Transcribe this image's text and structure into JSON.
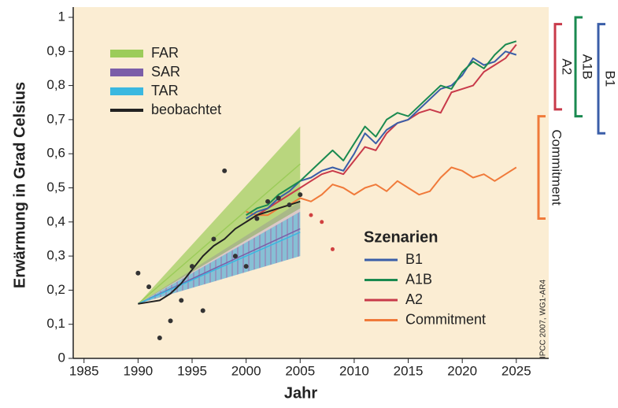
{
  "chart_data": {
    "type": "line",
    "x_label": "Jahr",
    "y_label": "Erwärmung in Grad Celsius",
    "xlim": [
      1984,
      2028
    ],
    "ylim": [
      0,
      1.03
    ],
    "xticks": [
      1985,
      1990,
      1995,
      2000,
      2005,
      2010,
      2015,
      2020,
      2025
    ],
    "yticks": [
      0,
      {
        "value": 0.1,
        "label": "0,1"
      },
      {
        "value": 0.2,
        "label": "0,2"
      },
      {
        "value": 0.3,
        "label": "0,3"
      },
      {
        "value": 0.4,
        "label": "0,4"
      },
      {
        "value": 0.5,
        "label": "0,5"
      },
      {
        "value": 0.6,
        "label": "0,6"
      },
      {
        "value": 0.7,
        "label": "0,7"
      },
      {
        "value": 0.8,
        "label": "0,8"
      },
      {
        "value": 0.9,
        "label": "0,9"
      },
      1
    ],
    "projections": [
      {
        "name": "FAR",
        "color": "#9ccc5a",
        "x": [
          1990,
          2005
        ],
        "lower": [
          0.16,
          0.44
        ],
        "upper": [
          0.16,
          0.68
        ],
        "values": [
          0.16,
          0.57
        ]
      },
      {
        "name": "SAR",
        "color": "#7b5ea8",
        "x": [
          1990,
          2005
        ],
        "lower": [
          0.16,
          0.3
        ],
        "upper": [
          0.16,
          0.46
        ],
        "values": [
          0.16,
          0.38
        ]
      },
      {
        "name": "TAR",
        "color": "#3ab8e0",
        "x": [
          1990,
          2005
        ],
        "lower": [
          0.16,
          0.3
        ],
        "upper": [
          0.16,
          0.43
        ],
        "values": [
          0.16,
          0.37
        ]
      }
    ],
    "observed": {
      "name": "beobachtet",
      "color": "#222222",
      "x": [
        1990,
        1991,
        1992,
        1993,
        1994,
        1995,
        1996,
        1997,
        1998,
        1999,
        2000,
        2001,
        2002,
        2003,
        2004,
        2005
      ],
      "values": [
        0.16,
        0.165,
        0.17,
        0.19,
        0.22,
        0.26,
        0.3,
        0.33,
        0.35,
        0.38,
        0.4,
        0.42,
        0.43,
        0.44,
        0.45,
        0.46
      ]
    },
    "observations": {
      "color": "#333333",
      "x": [
        1990,
        1991,
        1992,
        1993,
        1994,
        1995,
        1996,
        1997,
        1998,
        1999,
        2000,
        2001,
        2002,
        2003,
        2004,
        2005
      ],
      "values": [
        0.25,
        0.21,
        0.06,
        0.11,
        0.17,
        0.27,
        0.14,
        0.35,
        0.55,
        0.3,
        0.27,
        0.41,
        0.46,
        0.47,
        0.45,
        0.48
      ]
    },
    "recent_observations": {
      "color": "#d04040",
      "x": [
        2006,
        2007,
        2008
      ],
      "values": [
        0.42,
        0.4,
        0.32
      ]
    },
    "scenarios_title": "Szenarien",
    "scenario_x": [
      2000,
      2001,
      2002,
      2003,
      2004,
      2005,
      2006,
      2007,
      2008,
      2009,
      2010,
      2011,
      2012,
      2013,
      2014,
      2015,
      2016,
      2017,
      2018,
      2019,
      2020,
      2021,
      2022,
      2023,
      2024,
      2025
    ],
    "scenarios": [
      {
        "name": "B1",
        "color": "#3a5ea8",
        "values": [
          0.41,
          0.43,
          0.44,
          0.47,
          0.49,
          0.52,
          0.53,
          0.55,
          0.56,
          0.55,
          0.6,
          0.66,
          0.63,
          0.67,
          0.69,
          0.7,
          0.73,
          0.76,
          0.79,
          0.8,
          0.83,
          0.88,
          0.86,
          0.87,
          0.9,
          0.89
        ]
      },
      {
        "name": "A1B",
        "color": "#1a8a50",
        "values": [
          0.42,
          0.44,
          0.45,
          0.48,
          0.5,
          0.52,
          0.55,
          0.58,
          0.61,
          0.58,
          0.63,
          0.68,
          0.65,
          0.7,
          0.72,
          0.71,
          0.74,
          0.77,
          0.8,
          0.79,
          0.84,
          0.87,
          0.85,
          0.89,
          0.92,
          0.93
        ]
      },
      {
        "name": "A2",
        "color": "#c83a4a",
        "values": [
          0.4,
          0.42,
          0.44,
          0.46,
          0.48,
          0.5,
          0.52,
          0.54,
          0.55,
          0.54,
          0.58,
          0.62,
          0.61,
          0.66,
          0.69,
          0.7,
          0.72,
          0.73,
          0.72,
          0.78,
          0.79,
          0.8,
          0.84,
          0.86,
          0.88,
          0.92
        ]
      },
      {
        "name": "Commitment",
        "color": "#f07a3a",
        "values": [
          0.43,
          0.42,
          0.42,
          0.44,
          0.45,
          0.47,
          0.46,
          0.48,
          0.51,
          0.5,
          0.48,
          0.5,
          0.51,
          0.49,
          0.52,
          0.5,
          0.48,
          0.49,
          0.53,
          0.56,
          0.55,
          0.53,
          0.54,
          0.52,
          0.54,
          0.56
        ]
      }
    ],
    "brackets": [
      {
        "name": "Commitment",
        "color": "#f07a3a",
        "range": [
          0.41,
          0.71
        ]
      },
      {
        "name": "A2",
        "color": "#c83a4a",
        "range": [
          0.73,
          0.98
        ]
      },
      {
        "name": "A1B",
        "color": "#1a8a50",
        "range": [
          0.71,
          1.0
        ]
      },
      {
        "name": "B1",
        "color": "#3a5ea8",
        "range": [
          0.66,
          0.98
        ]
      }
    ],
    "credit": "IPCC 2007, WG1-AR4"
  }
}
